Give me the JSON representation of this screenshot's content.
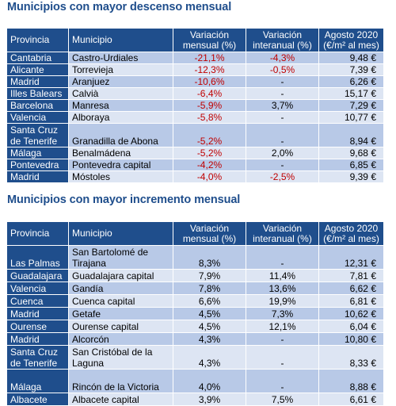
{
  "sections": [
    {
      "title": "Municipios con mayor descenso mensual",
      "headers": [
        "Provincia",
        "Municipio",
        "Variación mensual (%)",
        "Variación interanual (%)",
        "Agosto 2020 (€/m² al mes)"
      ],
      "rows": [
        {
          "provincia": "Cantabria",
          "municipio": "Castro-Urdiales",
          "mensual": "-21,1%",
          "interanual": "-4,3%",
          "agosto": "9,48 €"
        },
        {
          "provincia": "Alicante",
          "municipio": "Torrevieja",
          "mensual": "-12,3%",
          "interanual": "-0,5%",
          "agosto": "7,39 €"
        },
        {
          "provincia": "Madrid",
          "municipio": "Aranjuez",
          "mensual": "-10,6%",
          "interanual": "-",
          "agosto": "6,26 €"
        },
        {
          "provincia": "Illes Balears",
          "municipio": "Calvià",
          "mensual": "-6,4%",
          "interanual": "-",
          "agosto": "15,17 €"
        },
        {
          "provincia": "Barcelona",
          "municipio": "Manresa",
          "mensual": "-5,9%",
          "interanual": "3,7%",
          "agosto": "7,29 €"
        },
        {
          "provincia": "Valencia",
          "municipio": "Alboraya",
          "mensual": "-5,8%",
          "interanual": "-",
          "agosto": "10,77 €"
        },
        {
          "provincia": "Santa Cruz de Tenerife",
          "municipio": "Granadilla de Abona",
          "mensual": "-5,2%",
          "interanual": "-",
          "agosto": "8,94 €"
        },
        {
          "provincia": "Málaga",
          "municipio": "Benalmádena",
          "mensual": "-5,2%",
          "interanual": "2,0%",
          "agosto": "9,68 €"
        },
        {
          "provincia": "Pontevedra",
          "municipio": "Pontevedra capital",
          "mensual": "-4,2%",
          "interanual": "-",
          "agosto": "6,85 €"
        },
        {
          "provincia": "Madrid",
          "municipio": "Móstoles",
          "mensual": "-4,0%",
          "interanual": "-2,5%",
          "agosto": "9,39 €"
        }
      ]
    },
    {
      "title": "Municipios con mayor incremento mensual",
      "headers": [
        "Provincia",
        "Municipio",
        "Variación mensual (%)",
        "Variación interanual (%)",
        "Agosto 2020 (€/m² al mes)"
      ],
      "rows": [
        {
          "provincia": "Las Palmas",
          "municipio": "San Bartolomé de Tirajana",
          "mensual": "8,3%",
          "interanual": "-",
          "agosto": "12,31 €"
        },
        {
          "provincia": "Guadalajara",
          "municipio": "Guadalajara capital",
          "mensual": "7,9%",
          "interanual": "11,4%",
          "agosto": "7,81 €"
        },
        {
          "provincia": "Valencia",
          "municipio": "Gandía",
          "mensual": "7,8%",
          "interanual": "13,6%",
          "agosto": "6,62 €"
        },
        {
          "provincia": "Cuenca",
          "municipio": "Cuenca capital",
          "mensual": "6,6%",
          "interanual": "19,9%",
          "agosto": "6,81 €"
        },
        {
          "provincia": "Madrid",
          "municipio": "Getafe",
          "mensual": "4,5%",
          "interanual": "7,3%",
          "agosto": "10,62 €"
        },
        {
          "provincia": "Ourense",
          "municipio": "Ourense capital",
          "mensual": "4,5%",
          "interanual": "12,1%",
          "agosto": "6,04 €"
        },
        {
          "provincia": "Madrid",
          "municipio": "Alcorcón",
          "mensual": "4,3%",
          "interanual": "-",
          "agosto": "10,80 €"
        },
        {
          "provincia": "Santa Cruz de Tenerife",
          "municipio": "San Cristóbal de la Laguna",
          "mensual": "4,3%",
          "interanual": "-",
          "agosto": "8,33 €"
        },
        {
          "provincia": "Málaga",
          "municipio": "Rincón de la Victoria",
          "mensual": "4,0%",
          "interanual": "-",
          "agosto": "8,88 €"
        },
        {
          "provincia": "Albacete",
          "municipio": "Albacete capital",
          "mensual": "3,9%",
          "interanual": "7,5%",
          "agosto": "6,61 €"
        }
      ]
    }
  ],
  "colors": {
    "header_bg": "#1f4e8c",
    "title_text": "#1f4e8c",
    "row_dark": "#b8c9e7",
    "row_light": "#dde5f3",
    "negative_text": "#c00000"
  }
}
